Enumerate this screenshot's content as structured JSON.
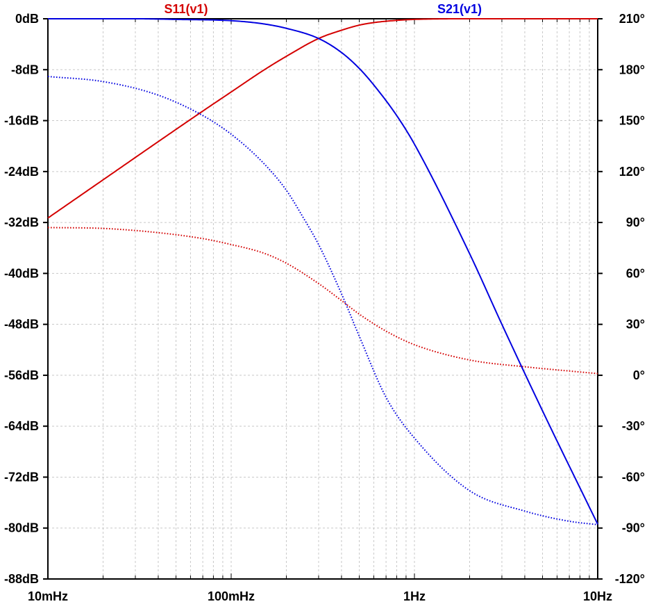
{
  "chart_data": {
    "type": "line",
    "title": "",
    "xlabel": "",
    "ylabel": "",
    "x_scale": "log",
    "xlim": [
      0.01,
      10
    ],
    "ylim_left": [
      -88,
      0
    ],
    "ylim_right": [
      -120,
      210
    ],
    "grid": true,
    "legend_placement": "top",
    "x_ticks": [
      {
        "value": 0.01,
        "label": "10mHz"
      },
      {
        "value": 0.1,
        "label": "100mHz"
      },
      {
        "value": 1,
        "label": "1Hz"
      },
      {
        "value": 10,
        "label": "10Hz"
      }
    ],
    "left_ticks": [
      {
        "value": 0,
        "label": "0dB"
      },
      {
        "value": -8,
        "label": "-8dB"
      },
      {
        "value": -16,
        "label": "-16dB"
      },
      {
        "value": -24,
        "label": "-24dB"
      },
      {
        "value": -32,
        "label": "-32dB"
      },
      {
        "value": -40,
        "label": "-40dB"
      },
      {
        "value": -48,
        "label": "-48dB"
      },
      {
        "value": -56,
        "label": "-56dB"
      },
      {
        "value": -64,
        "label": "-64dB"
      },
      {
        "value": -72,
        "label": "-72dB"
      },
      {
        "value": -80,
        "label": "-80dB"
      },
      {
        "value": -88,
        "label": "-88dB"
      }
    ],
    "right_ticks": [
      {
        "value": 210,
        "label": "210°"
      },
      {
        "value": 180,
        "label": "180°"
      },
      {
        "value": 150,
        "label": "150°"
      },
      {
        "value": 120,
        "label": "120°"
      },
      {
        "value": 90,
        "label": "90°"
      },
      {
        "value": 60,
        "label": "60°"
      },
      {
        "value": 30,
        "label": "30°"
      },
      {
        "value": 0,
        "label": "0°"
      },
      {
        "value": -30,
        "label": "-30°"
      },
      {
        "value": -60,
        "label": "-60°"
      },
      {
        "value": -90,
        "label": "-90°"
      },
      {
        "value": -120,
        "label": "-120°"
      }
    ],
    "series": [
      {
        "name": "S11(v1)",
        "color": "#d40000",
        "magnitude_db": {
          "x": [
            0.01,
            0.02,
            0.04,
            0.07,
            0.1,
            0.15,
            0.2,
            0.3,
            0.4,
            0.5,
            0.6,
            0.8,
            1,
            2,
            5,
            10
          ],
          "y": [
            -31.3,
            -25.3,
            -19.3,
            -14.5,
            -11.5,
            -8.1,
            -5.9,
            -3.1,
            -1.8,
            -1.0,
            -0.6,
            -0.25,
            -0.1,
            0,
            0,
            0
          ]
        },
        "phase_deg": {
          "x": [
            0.01,
            0.02,
            0.04,
            0.07,
            0.1,
            0.15,
            0.2,
            0.3,
            0.4,
            0.5,
            0.7,
            1,
            2,
            4,
            7,
            10
          ],
          "y": [
            87,
            86.5,
            84,
            80.5,
            77,
            72,
            66,
            54,
            44,
            36,
            26,
            18,
            9,
            5,
            2.5,
            1
          ]
        }
      },
      {
        "name": "S21(v1)",
        "color": "#0000e0",
        "magnitude_db": {
          "x": [
            0.01,
            0.03,
            0.05,
            0.1,
            0.15,
            0.2,
            0.3,
            0.4,
            0.5,
            0.6,
            0.8,
            1,
            2,
            3,
            5,
            10
          ],
          "y": [
            0,
            0,
            -0.1,
            -0.3,
            -0.8,
            -1.5,
            -3.1,
            -5.3,
            -7.8,
            -10.4,
            -15.2,
            -19.7,
            -36.9,
            -48,
            -61.6,
            -79.4
          ]
        },
        "phase_deg": {
          "x": [
            0.01,
            0.02,
            0.04,
            0.07,
            0.1,
            0.15,
            0.2,
            0.25,
            0.3,
            0.4,
            0.5,
            0.7,
            1,
            2,
            4,
            7,
            10
          ],
          "y": [
            176,
            173,
            165,
            153,
            142,
            125,
            109,
            92,
            77,
            48,
            23,
            -13,
            -37,
            -68,
            -80,
            -86,
            -88
          ]
        }
      }
    ]
  }
}
